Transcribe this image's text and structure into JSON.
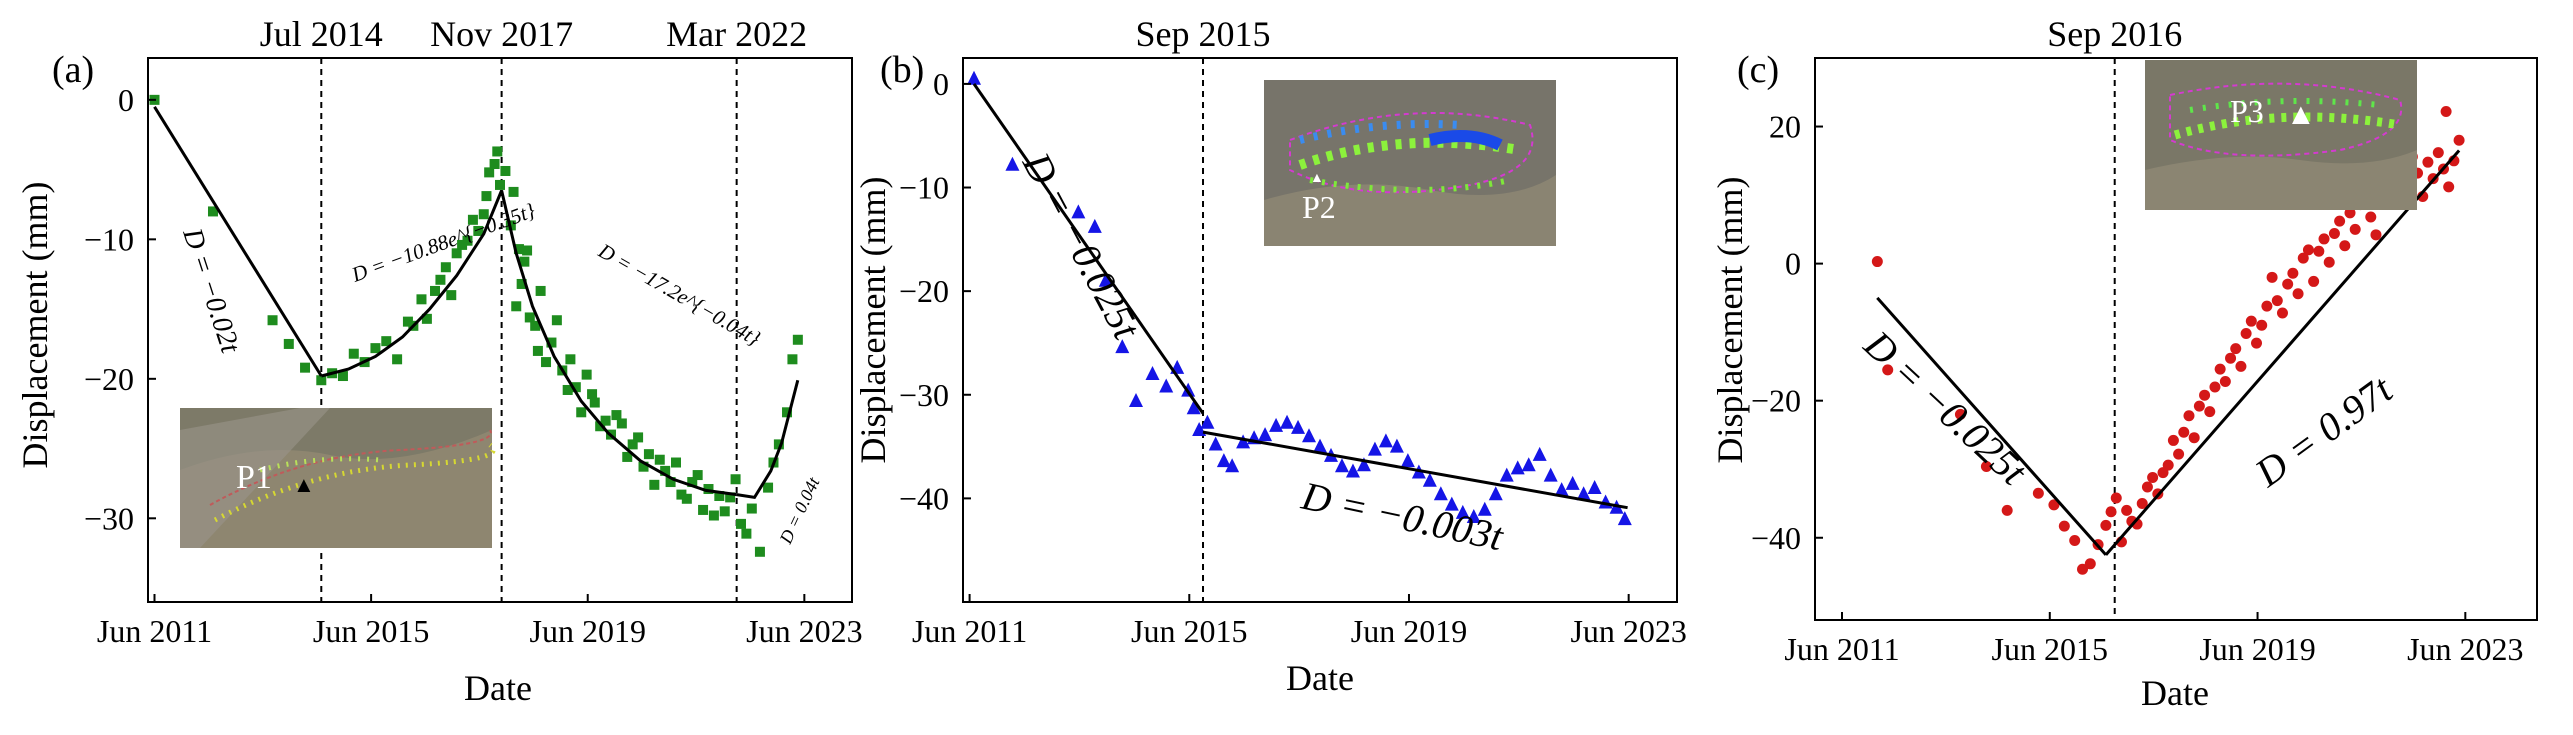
{
  "figure": {
    "xlabel": "Date",
    "ylabel": "Displacement (mm)"
  },
  "chart_data": [
    {
      "type": "scatter",
      "panel_label": "(a)",
      "xlabel": "Date",
      "ylabel": "Displacement (mm)",
      "xlim": [
        2011.3,
        2024.3
      ],
      "ylim": [
        -36,
        3
      ],
      "xticks": [
        {
          "value": 2011.42,
          "label": "Jun 2011"
        },
        {
          "value": 2015.42,
          "label": "Jun 2015"
        },
        {
          "value": 2019.42,
          "label": "Jun 2019"
        },
        {
          "value": 2023.42,
          "label": "Jun 2023"
        }
      ],
      "yticks": [
        0,
        -10,
        -20,
        -30
      ],
      "events": [
        {
          "x": 2014.5,
          "label": "Jul 2014"
        },
        {
          "x": 2017.83,
          "label": "Nov 2017"
        },
        {
          "x": 2022.17,
          "label": "Mar 2022"
        }
      ],
      "marker": "square",
      "series_color": "#1e8c1e",
      "points": [
        [
          2011.42,
          0.0
        ],
        [
          2012.5,
          -8.0
        ],
        [
          2013.6,
          -15.8
        ],
        [
          2013.9,
          -17.5
        ],
        [
          2014.2,
          -19.2
        ],
        [
          2014.5,
          -20.1
        ],
        [
          2014.7,
          -19.6
        ],
        [
          2014.9,
          -19.8
        ],
        [
          2015.1,
          -18.2
        ],
        [
          2015.3,
          -18.8
        ],
        [
          2015.5,
          -17.8
        ],
        [
          2015.7,
          -17.3
        ],
        [
          2015.9,
          -18.6
        ],
        [
          2016.1,
          -15.9
        ],
        [
          2016.2,
          -16.2
        ],
        [
          2016.35,
          -14.3
        ],
        [
          2016.45,
          -15.7
        ],
        [
          2016.6,
          -13.7
        ],
        [
          2016.7,
          -12.9
        ],
        [
          2016.8,
          -12.0
        ],
        [
          2016.9,
          -14.0
        ],
        [
          2017.0,
          -11.0
        ],
        [
          2017.1,
          -10.4
        ],
        [
          2017.2,
          -10.1
        ],
        [
          2017.3,
          -8.6
        ],
        [
          2017.4,
          -9.4
        ],
        [
          2017.5,
          -8.2
        ],
        [
          2017.55,
          -6.9
        ],
        [
          2017.6,
          -5.2
        ],
        [
          2017.7,
          -4.6
        ],
        [
          2017.75,
          -3.7
        ],
        [
          2017.8,
          -6.1
        ],
        [
          2017.9,
          -5.1
        ],
        [
          2018.0,
          -9.0
        ],
        [
          2018.05,
          -6.6
        ],
        [
          2018.1,
          -14.8
        ],
        [
          2018.15,
          -10.7
        ],
        [
          2018.2,
          -13.2
        ],
        [
          2018.25,
          -11.6
        ],
        [
          2018.3,
          -10.8
        ],
        [
          2018.35,
          -15.6
        ],
        [
          2018.45,
          -16.2
        ],
        [
          2018.5,
          -18.0
        ],
        [
          2018.55,
          -13.7
        ],
        [
          2018.65,
          -18.8
        ],
        [
          2018.75,
          -17.4
        ],
        [
          2018.85,
          -15.8
        ],
        [
          2018.95,
          -19.4
        ],
        [
          2019.05,
          -20.8
        ],
        [
          2019.1,
          -18.6
        ],
        [
          2019.2,
          -20.6
        ],
        [
          2019.3,
          -22.4
        ],
        [
          2019.4,
          -19.7
        ],
        [
          2019.5,
          -21.1
        ],
        [
          2019.55,
          -21.7
        ],
        [
          2019.65,
          -23.4
        ],
        [
          2019.75,
          -23.0
        ],
        [
          2019.85,
          -24.0
        ],
        [
          2019.95,
          -22.6
        ],
        [
          2020.05,
          -23.2
        ],
        [
          2020.15,
          -25.6
        ],
        [
          2020.25,
          -24.7
        ],
        [
          2020.35,
          -24.2
        ],
        [
          2020.45,
          -26.3
        ],
        [
          2020.55,
          -25.4
        ],
        [
          2020.65,
          -27.6
        ],
        [
          2020.75,
          -25.8
        ],
        [
          2020.85,
          -26.6
        ],
        [
          2020.95,
          -27.4
        ],
        [
          2021.05,
          -26.0
        ],
        [
          2021.15,
          -28.3
        ],
        [
          2021.25,
          -28.6
        ],
        [
          2021.35,
          -27.4
        ],
        [
          2021.45,
          -26.9
        ],
        [
          2021.55,
          -29.4
        ],
        [
          2021.65,
          -27.9
        ],
        [
          2021.75,
          -29.8
        ],
        [
          2021.85,
          -28.4
        ],
        [
          2021.95,
          -29.5
        ],
        [
          2022.05,
          -28.5
        ],
        [
          2022.15,
          -27.2
        ],
        [
          2022.25,
          -30.4
        ],
        [
          2022.35,
          -31.1
        ],
        [
          2022.45,
          -29.3
        ],
        [
          2022.6,
          -32.4
        ],
        [
          2022.75,
          -27.8
        ],
        [
          2022.85,
          -26.0
        ],
        [
          2022.95,
          -24.7
        ],
        [
          2023.1,
          -22.4
        ],
        [
          2023.2,
          -18.6
        ],
        [
          2023.3,
          -17.2
        ]
      ],
      "fits": [
        {
          "label": "D = −0.02t",
          "points": [
            [
              2011.42,
              -0.5
            ],
            [
              2014.5,
              -19.8
            ]
          ]
        },
        {
          "label": "D = −10.88e^{−0.35t}",
          "points": [
            [
              2014.5,
              -19.8
            ],
            [
              2015.0,
              -19.3
            ],
            [
              2015.5,
              -18.4
            ],
            [
              2016.0,
              -17.0
            ],
            [
              2016.5,
              -15.0
            ],
            [
              2017.0,
              -12.6
            ],
            [
              2017.5,
              -9.6
            ],
            [
              2017.83,
              -6.5
            ]
          ]
        },
        {
          "label": "D = −17.2e^{−0.04t}",
          "points": [
            [
              2017.83,
              -6.5
            ],
            [
              2018.1,
              -11.0
            ],
            [
              2018.4,
              -14.8
            ],
            [
              2018.8,
              -18.4
            ],
            [
              2019.3,
              -21.6
            ],
            [
              2019.8,
              -23.9
            ],
            [
              2020.4,
              -25.9
            ],
            [
              2021.0,
              -27.2
            ],
            [
              2021.6,
              -28.0
            ],
            [
              2022.17,
              -28.3
            ]
          ]
        },
        {
          "label": "D = 0.04t",
          "points": [
            [
              2022.17,
              -28.3
            ],
            [
              2022.5,
              -28.5
            ],
            [
              2022.8,
              -26.6
            ],
            [
              2023.0,
              -24.6
            ],
            [
              2023.3,
              -20.1
            ]
          ]
        }
      ],
      "inset": {
        "label": "P1",
        "marker": "▲"
      }
    },
    {
      "type": "scatter",
      "panel_label": "(b)",
      "xlabel": "Date",
      "ylabel": "Displacement (mm)",
      "xlim": [
        2011.3,
        2024.3
      ],
      "ylim": [
        -50,
        2.5
      ],
      "xticks": [
        {
          "value": 2011.42,
          "label": "Jun 2011"
        },
        {
          "value": 2015.42,
          "label": "Jun 2015"
        },
        {
          "value": 2019.42,
          "label": "Jun 2019"
        },
        {
          "value": 2023.42,
          "label": "Jun 2023"
        }
      ],
      "yticks": [
        0,
        -10,
        -20,
        -30,
        -40
      ],
      "events": [
        {
          "x": 2015.67,
          "label": "Sep 2015"
        }
      ],
      "marker": "triangle",
      "series_color": "#1515e6",
      "points": [
        [
          2011.5,
          0.5
        ],
        [
          2012.2,
          -7.8
        ],
        [
          2013.4,
          -12.4
        ],
        [
          2013.7,
          -13.8
        ],
        [
          2013.9,
          -19.0
        ],
        [
          2014.2,
          -25.4
        ],
        [
          2014.45,
          -30.6
        ],
        [
          2014.75,
          -28.0
        ],
        [
          2015.0,
          -29.2
        ],
        [
          2015.2,
          -27.4
        ],
        [
          2015.4,
          -29.6
        ],
        [
          2015.5,
          -31.3
        ],
        [
          2015.6,
          -33.4
        ],
        [
          2015.75,
          -32.7
        ],
        [
          2015.9,
          -34.8
        ],
        [
          2016.05,
          -36.4
        ],
        [
          2016.2,
          -36.9
        ],
        [
          2016.4,
          -34.6
        ],
        [
          2016.6,
          -34.2
        ],
        [
          2016.8,
          -33.9
        ],
        [
          2017.0,
          -33.0
        ],
        [
          2017.2,
          -32.7
        ],
        [
          2017.4,
          -33.2
        ],
        [
          2017.6,
          -34.0
        ],
        [
          2017.8,
          -35.0
        ],
        [
          2018.0,
          -35.9
        ],
        [
          2018.2,
          -36.9
        ],
        [
          2018.4,
          -37.4
        ],
        [
          2018.6,
          -36.8
        ],
        [
          2018.8,
          -35.3
        ],
        [
          2019.0,
          -34.5
        ],
        [
          2019.2,
          -35.0
        ],
        [
          2019.4,
          -36.4
        ],
        [
          2019.6,
          -37.5
        ],
        [
          2019.8,
          -38.3
        ],
        [
          2020.0,
          -39.6
        ],
        [
          2020.2,
          -40.6
        ],
        [
          2020.4,
          -41.4
        ],
        [
          2020.6,
          -41.8
        ],
        [
          2020.8,
          -41.1
        ],
        [
          2021.0,
          -39.6
        ],
        [
          2021.2,
          -37.8
        ],
        [
          2021.4,
          -37.1
        ],
        [
          2021.6,
          -36.8
        ],
        [
          2021.8,
          -35.8
        ],
        [
          2022.0,
          -37.8
        ],
        [
          2022.2,
          -39.2
        ],
        [
          2022.4,
          -38.6
        ],
        [
          2022.6,
          -39.6
        ],
        [
          2022.8,
          -39.0
        ],
        [
          2023.0,
          -40.4
        ],
        [
          2023.2,
          -40.9
        ],
        [
          2023.35,
          -42.0
        ]
      ],
      "fits": [
        {
          "label": "D = −0.025t",
          "points": [
            [
              2011.5,
              0.0
            ],
            [
              2015.67,
              -31.8
            ]
          ]
        },
        {
          "label": "D = −0.003t",
          "points": [
            [
              2015.67,
              -33.6
            ],
            [
              2023.4,
              -40.9
            ]
          ]
        }
      ],
      "inset": {
        "label": "P2",
        "marker": "▲"
      }
    },
    {
      "type": "scatter",
      "panel_label": "(c)",
      "xlabel": "Date",
      "ylabel": "Displacement (mm)",
      "xlim": [
        2010.9,
        2024.8
      ],
      "ylim": [
        -52,
        30
      ],
      "xticks": [
        {
          "value": 2011.42,
          "label": "Jun 2011"
        },
        {
          "value": 2015.42,
          "label": "Jun 2015"
        },
        {
          "value": 2019.42,
          "label": "Jun 2019"
        },
        {
          "value": 2023.42,
          "label": "Jun 2023"
        }
      ],
      "yticks": [
        20,
        0,
        -20,
        -40
      ],
      "events": [
        {
          "x": 2016.67,
          "label": "Sep 2016"
        }
      ],
      "marker": "circle",
      "series_color": "#d41818",
      "points": [
        [
          2012.1,
          0.3
        ],
        [
          2012.3,
          -15.5
        ],
        [
          2013.7,
          -22.0
        ],
        [
          2014.2,
          -29.6
        ],
        [
          2014.6,
          -36.0
        ],
        [
          2015.2,
          -33.5
        ],
        [
          2015.5,
          -35.2
        ],
        [
          2015.7,
          -38.3
        ],
        [
          2015.9,
          -40.4
        ],
        [
          2016.05,
          -44.6
        ],
        [
          2016.2,
          -43.8
        ],
        [
          2016.35,
          -41.0
        ],
        [
          2016.5,
          -38.2
        ],
        [
          2016.6,
          -36.2
        ],
        [
          2016.7,
          -34.2
        ],
        [
          2016.8,
          -40.6
        ],
        [
          2016.9,
          -36.0
        ],
        [
          2017.0,
          -37.6
        ],
        [
          2017.1,
          -38.0
        ],
        [
          2017.2,
          -35.0
        ],
        [
          2017.3,
          -32.6
        ],
        [
          2017.4,
          -31.2
        ],
        [
          2017.5,
          -33.6
        ],
        [
          2017.6,
          -30.5
        ],
        [
          2017.7,
          -29.4
        ],
        [
          2017.8,
          -25.8
        ],
        [
          2017.9,
          -27.8
        ],
        [
          2018.0,
          -24.6
        ],
        [
          2018.1,
          -22.2
        ],
        [
          2018.2,
          -25.4
        ],
        [
          2018.3,
          -20.8
        ],
        [
          2018.4,
          -19.2
        ],
        [
          2018.5,
          -21.6
        ],
        [
          2018.6,
          -18.0
        ],
        [
          2018.7,
          -15.4
        ],
        [
          2018.8,
          -17.2
        ],
        [
          2018.9,
          -13.8
        ],
        [
          2019.0,
          -12.4
        ],
        [
          2019.1,
          -15.0
        ],
        [
          2019.2,
          -10.2
        ],
        [
          2019.3,
          -8.4
        ],
        [
          2019.4,
          -11.6
        ],
        [
          2019.5,
          -9.0
        ],
        [
          2019.6,
          -6.2
        ],
        [
          2019.7,
          -2.0
        ],
        [
          2019.8,
          -5.4
        ],
        [
          2019.9,
          -7.2
        ],
        [
          2020.0,
          -3.0
        ],
        [
          2020.1,
          -1.4
        ],
        [
          2020.2,
          -4.4
        ],
        [
          2020.3,
          0.8
        ],
        [
          2020.4,
          2.0
        ],
        [
          2020.5,
          -2.6
        ],
        [
          2020.6,
          1.8
        ],
        [
          2020.7,
          3.6
        ],
        [
          2020.8,
          0.2
        ],
        [
          2020.9,
          4.4
        ],
        [
          2021.0,
          6.2
        ],
        [
          2021.1,
          2.6
        ],
        [
          2021.2,
          7.4
        ],
        [
          2021.3,
          5.0
        ],
        [
          2021.4,
          8.6
        ],
        [
          2021.5,
          10.4
        ],
        [
          2021.6,
          6.8
        ],
        [
          2021.7,
          4.2
        ],
        [
          2021.8,
          11.8
        ],
        [
          2021.9,
          9.2
        ],
        [
          2022.0,
          12.8
        ],
        [
          2022.1,
          10.6
        ],
        [
          2022.2,
          14.4
        ],
        [
          2022.3,
          12.0
        ],
        [
          2022.4,
          15.6
        ],
        [
          2022.5,
          13.2
        ],
        [
          2022.6,
          9.8
        ],
        [
          2022.7,
          14.8
        ],
        [
          2022.8,
          12.4
        ],
        [
          2022.9,
          16.2
        ],
        [
          2023.0,
          13.8
        ],
        [
          2023.05,
          22.2
        ],
        [
          2023.1,
          11.2
        ],
        [
          2023.2,
          15.0
        ],
        [
          2023.3,
          18.0
        ]
      ],
      "fits": [
        {
          "label": "D = −0.025t",
          "points": [
            [
              2012.1,
              -5.0
            ],
            [
              2016.5,
              -42.5
            ]
          ]
        },
        {
          "label": "D = 0.97t",
          "points": [
            [
              2016.5,
              -42.5
            ],
            [
              2023.3,
              16.5
            ]
          ]
        }
      ],
      "inset": {
        "label": "P3",
        "marker": "▲"
      }
    }
  ]
}
